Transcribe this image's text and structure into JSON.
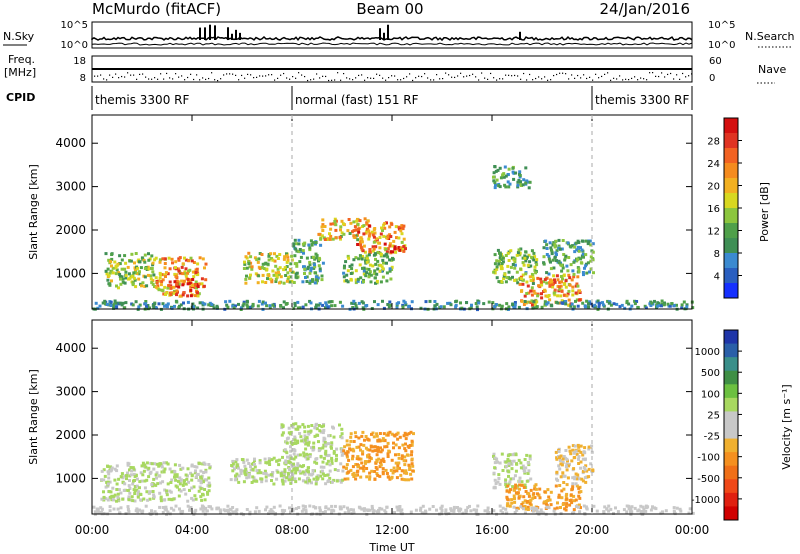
{
  "header": {
    "radar": "McMurdo (fitACF)",
    "beam": "Beam 00",
    "date": "24/Jan/2016"
  },
  "top_panels": {
    "nsky_label": "N.Sky",
    "nsky_ticks": [
      "10^5",
      "10^0"
    ],
    "nsearch_label": "N.Search",
    "nsearch_ticks": [
      "10^5",
      "10^0"
    ],
    "freq_label_1": "Freq.",
    "freq_label_2": "[MHz]",
    "freq_ticks": [
      "18",
      "8"
    ],
    "nave_label": "Nave",
    "nave_ticks": [
      "60",
      "0"
    ],
    "cpid_label": "CPID",
    "cpid_segments": [
      {
        "text": "themis 3300 RF",
        "start_hour": 0,
        "end_hour": 8
      },
      {
        "text": "normal (fast) 151 RF",
        "start_hour": 8,
        "end_hour": 20
      },
      {
        "text": "themis 3300 RF",
        "start_hour": 20,
        "end_hour": 24
      }
    ]
  },
  "colorbars": {
    "power": {
      "title": "Power [dB]",
      "ticks": [
        "4",
        "8",
        "12",
        "16",
        "20",
        "24",
        "28"
      ],
      "colors": [
        "#1530ff",
        "#2a5fc0",
        "#3b8ad0",
        "#3f8f55",
        "#4fa04a",
        "#8cc63e",
        "#d8d820",
        "#f2b021",
        "#f58b1e",
        "#f26222",
        "#e03322",
        "#d40f0f"
      ]
    },
    "velocity": {
      "title": "Velocity [m s⁻¹]",
      "ticks": [
        "1000",
        "500",
        "100",
        "25",
        "-25",
        "-100",
        "-500",
        "-1000"
      ],
      "colors": [
        "#1f35a8",
        "#2a5fa8",
        "#3a8f8a",
        "#3f8f45",
        "#6cc040",
        "#a8d860",
        "#c8c8c8",
        "#c8c8c8",
        "#f0b030",
        "#f59020",
        "#f07018",
        "#f04818",
        "#e02010",
        "#d00000"
      ]
    }
  },
  "chart_data": [
    {
      "type": "heatmap",
      "title": "Power [dB]",
      "xlabel": "Time UT",
      "ylabel": "Slant Range [km]",
      "xlim": [
        0,
        24
      ],
      "ylim": [
        180,
        4650
      ],
      "x_ticks": [
        "00:00",
        "04:00",
        "08:00",
        "12:00",
        "16:00",
        "20:00",
        "00:00"
      ],
      "y_ticks": [
        "1000",
        "2000",
        "3000",
        "4000"
      ],
      "clim": [
        0,
        30
      ],
      "patches": [
        {
          "x": [
            0.5,
            2.5
          ],
          "y": [
            700,
            1500
          ],
          "value": 14
        },
        {
          "x": [
            2.5,
            4.5
          ],
          "y": [
            500,
            1400
          ],
          "value": 20
        },
        {
          "x": [
            3.2,
            4.2
          ],
          "y": [
            500,
            900
          ],
          "value": 28
        },
        {
          "x": [
            6.0,
            8.0
          ],
          "y": [
            800,
            1500
          ],
          "value": 16
        },
        {
          "x": [
            8.0,
            9.2
          ],
          "y": [
            800,
            1800
          ],
          "value": 10
        },
        {
          "x": [
            9.0,
            11.0
          ],
          "y": [
            1800,
            2300
          ],
          "value": 18
        },
        {
          "x": [
            10.5,
            12.5
          ],
          "y": [
            1500,
            2200
          ],
          "value": 22
        },
        {
          "x": [
            10.0,
            12.0
          ],
          "y": [
            800,
            1500
          ],
          "value": 12
        },
        {
          "x": [
            16.0,
            17.8
          ],
          "y": [
            800,
            1600
          ],
          "value": 12
        },
        {
          "x": [
            17.0,
            19.5
          ],
          "y": [
            300,
            1000
          ],
          "value": 20
        },
        {
          "x": [
            18.0,
            20.0
          ],
          "y": [
            1000,
            1800
          ],
          "value": 10
        },
        {
          "x": [
            16.0,
            17.5
          ],
          "y": [
            3000,
            3500
          ],
          "value": 10
        },
        {
          "x": [
            0.0,
            24.0
          ],
          "y": [
            200,
            400
          ],
          "value": 8
        }
      ]
    },
    {
      "type": "heatmap",
      "title": "Velocity [m s⁻¹]",
      "xlabel": "Time UT",
      "ylabel": "Slant Range [km]",
      "xlim": [
        0,
        24
      ],
      "ylim": [
        180,
        4650
      ],
      "x_ticks": [
        "00:00",
        "04:00",
        "08:00",
        "12:00",
        "16:00",
        "20:00",
        "00:00"
      ],
      "y_ticks": [
        "1000",
        "2000",
        "3000",
        "4000"
      ],
      "clim": [
        -1000,
        1000
      ],
      "patches": [
        {
          "x": [
            0.3,
            4.7
          ],
          "y": [
            500,
            1400
          ],
          "value": 150
        },
        {
          "x": [
            5.5,
            8.0
          ],
          "y": [
            900,
            1500
          ],
          "value": 150
        },
        {
          "x": [
            7.5,
            10.0
          ],
          "y": [
            900,
            2300
          ],
          "value": 150
        },
        {
          "x": [
            10.0,
            12.8
          ],
          "y": [
            1000,
            2100
          ],
          "value": -300
        },
        {
          "x": [
            16.0,
            17.5
          ],
          "y": [
            800,
            1600
          ],
          "value": 150
        },
        {
          "x": [
            16.5,
            19.5
          ],
          "y": [
            300,
            900
          ],
          "value": -300
        },
        {
          "x": [
            18.5,
            20.0
          ],
          "y": [
            900,
            1800
          ],
          "value": -150
        },
        {
          "x": [
            0.0,
            24.0
          ],
          "y": [
            200,
            400
          ],
          "value": -60
        }
      ]
    }
  ]
}
